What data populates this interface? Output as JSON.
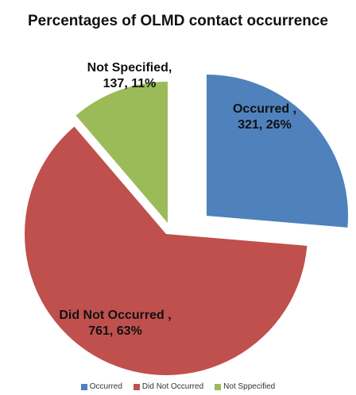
{
  "chart_data": {
    "type": "pie",
    "title": "Percentages of OLMD contact occurrence",
    "slices": [
      {
        "name": "Occurred",
        "value": 321,
        "percent": 26,
        "label_name": "Occurred ,",
        "label_value": "321, 26%",
        "color": "#4F81BD"
      },
      {
        "name": "Did Not Occurred",
        "value": 761,
        "percent": 63,
        "label_name": "Did Not Occurred ,",
        "label_value": "761, 63%",
        "color": "#C0504D"
      },
      {
        "name": "Not Sppecified",
        "value": 137,
        "percent": 11,
        "label_name": "Not Specified,",
        "label_value": "137, 11%",
        "color": "#9BBB59"
      }
    ],
    "legend": [
      "Occurred",
      "Did Not Occurred",
      "Not Sppecified"
    ],
    "legend_position": "bottom",
    "exploded": true
  }
}
